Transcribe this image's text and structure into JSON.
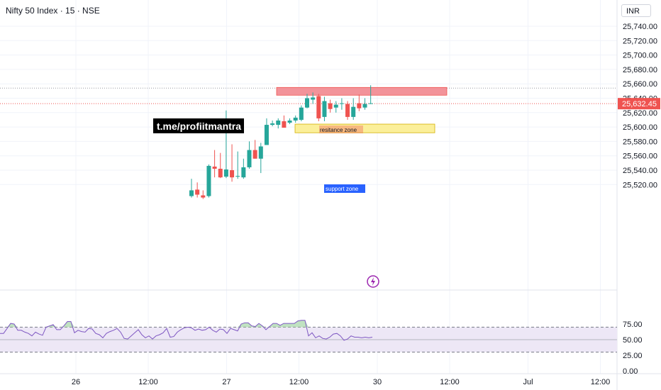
{
  "header": {
    "title": "Nifty 50 Index · 15 · NSE",
    "currency": "INR"
  },
  "annotations": {
    "telegram": "t.me/profiitmantra",
    "resistance_label": "resitance zone",
    "support_label": "support zone",
    "last_price_label": "25,632.45"
  },
  "colors": {
    "up": "#26a69a",
    "down": "#ef5350",
    "resistance": "#f2939a",
    "support": "#fbef9a",
    "support_label_bg": "#2962ff",
    "rsi_line": "#7e57c2",
    "rsi_band": "#ede7f6",
    "rsi_overbought": "#a5d6a7",
    "flash": "#9c27b0"
  },
  "chart_data": [
    {
      "type": "candlestick",
      "title": "Nifty 50 Index · 15 · NSE",
      "ylim": [
        25500,
        25752
      ],
      "y_ticks": [
        "25,520.00",
        "25,540.00",
        "25,560.00",
        "25,580.00",
        "25,600.00",
        "25,620.00",
        "25,640.00",
        "25,660.00",
        "25,680.00",
        "25,700.00",
        "25,720.00",
        "25,740.00"
      ],
      "y_tick_values": [
        25520,
        25540,
        25560,
        25580,
        25600,
        25620,
        25640,
        25660,
        25680,
        25700,
        25720,
        25740
      ],
      "x_ticks": [
        "26",
        "12:00",
        "27",
        "12:00",
        "30",
        "12:00",
        "Jul",
        "12:00"
      ],
      "x_tick_positions": [
        0,
        12,
        25,
        37,
        50,
        62,
        75,
        87
      ],
      "last_price": 25632.45,
      "resistance_zone": {
        "low": 25648,
        "high": 25654,
        "x_start": 32,
        "x_end": 59
      },
      "support_zone": {
        "low": 25592,
        "high": 25604,
        "x_start": 35,
        "x_end": 57
      },
      "candles": [
        {
          "x": 0,
          "o": 25504,
          "h": 25528,
          "l": 25502,
          "c": 25512
        },
        {
          "x": 1,
          "o": 25513,
          "h": 25523,
          "l": 25502,
          "c": 25506
        },
        {
          "x": 2,
          "o": 25505,
          "h": 25512,
          "l": 25500,
          "c": 25502
        },
        {
          "x": 3,
          "o": 25504,
          "h": 25548,
          "l": 25502,
          "c": 25546
        },
        {
          "x": 4,
          "o": 25545,
          "h": 25568,
          "l": 25530,
          "c": 25542
        },
        {
          "x": 5,
          "o": 25542,
          "h": 25564,
          "l": 25529,
          "c": 25530
        },
        {
          "x": 6,
          "o": 25531,
          "h": 25623,
          "l": 25529,
          "c": 25541
        },
        {
          "x": 7,
          "o": 25540,
          "h": 25576,
          "l": 25524,
          "c": 25530
        },
        {
          "x": 8,
          "o": 25532,
          "h": 25566,
          "l": 25528,
          "c": 25532
        },
        {
          "x": 9,
          "o": 25530,
          "h": 25556,
          "l": 25528,
          "c": 25544
        },
        {
          "x": 10,
          "o": 25544,
          "h": 25580,
          "l": 25542,
          "c": 25568
        },
        {
          "x": 11,
          "o": 25568,
          "h": 25582,
          "l": 25556,
          "c": 25556
        },
        {
          "x": 12,
          "o": 25556,
          "h": 25578,
          "l": 25536,
          "c": 25573
        },
        {
          "x": 13,
          "o": 25575,
          "h": 25612,
          "l": 25575,
          "c": 25603
        },
        {
          "x": 14,
          "o": 25603,
          "h": 25609,
          "l": 25601,
          "c": 25605
        },
        {
          "x": 15,
          "o": 25603,
          "h": 25612,
          "l": 25598,
          "c": 25609
        },
        {
          "x": 16,
          "o": 25608,
          "h": 25616,
          "l": 25600,
          "c": 25599
        },
        {
          "x": 17,
          "o": 25606,
          "h": 25612,
          "l": 25604,
          "c": 25609
        },
        {
          "x": 18,
          "o": 25609,
          "h": 25616,
          "l": 25606,
          "c": 25613
        },
        {
          "x": 19,
          "o": 25610,
          "h": 25630,
          "l": 25608,
          "c": 25627
        },
        {
          "x": 20,
          "o": 25627,
          "h": 25646,
          "l": 25626,
          "c": 25640
        },
        {
          "x": 21,
          "o": 25638,
          "h": 25648,
          "l": 25632,
          "c": 25641
        },
        {
          "x": 22,
          "o": 25643,
          "h": 25646,
          "l": 25608,
          "c": 25612
        },
        {
          "x": 23,
          "o": 25614,
          "h": 25642,
          "l": 25608,
          "c": 25636
        },
        {
          "x": 24,
          "o": 25633,
          "h": 25638,
          "l": 25620,
          "c": 25625
        },
        {
          "x": 25,
          "o": 25627,
          "h": 25636,
          "l": 25620,
          "c": 25631
        },
        {
          "x": 26,
          "o": 25632,
          "h": 25640,
          "l": 25624,
          "c": 25633
        },
        {
          "x": 27,
          "o": 25632,
          "h": 25636,
          "l": 25610,
          "c": 25614
        },
        {
          "x": 28,
          "o": 25614,
          "h": 25640,
          "l": 25610,
          "c": 25628
        },
        {
          "x": 29,
          "o": 25633,
          "h": 25645,
          "l": 25622,
          "c": 25626
        },
        {
          "x": 30,
          "o": 25627,
          "h": 25640,
          "l": 25624,
          "c": 25632
        },
        {
          "x": 31,
          "o": 25632,
          "h": 25658,
          "l": 25632,
          "c": 25633
        }
      ]
    },
    {
      "type": "line",
      "name": "RSI",
      "ylim": [
        0,
        100
      ],
      "y_ticks": [
        "0.00",
        "25.00",
        "50.00",
        "75.00"
      ],
      "y_tick_values": [
        0,
        25,
        50,
        75
      ],
      "bands": {
        "lower": 30,
        "upper": 70
      },
      "values": [
        60,
        60,
        68,
        76,
        75,
        65,
        65,
        62,
        60,
        56,
        62,
        59,
        57,
        70,
        72,
        74,
        66,
        66,
        72,
        79,
        79,
        61,
        65,
        63,
        62,
        68,
        67,
        60,
        58,
        53,
        60,
        63,
        65,
        68,
        62,
        52,
        51,
        56,
        61,
        66,
        58,
        53,
        56,
        51,
        56,
        58,
        61,
        68,
        54,
        55,
        62,
        66,
        69,
        70,
        69,
        65,
        67,
        65,
        66,
        70,
        65,
        62,
        67,
        66,
        60,
        68,
        66,
        64,
        75,
        77,
        77,
        72,
        71,
        76,
        72,
        66,
        71,
        76,
        76,
        73,
        76,
        76,
        76,
        76,
        80,
        81,
        81,
        56,
        61,
        53,
        56,
        52,
        51,
        54,
        59,
        60,
        56,
        49,
        51,
        56,
        54,
        54,
        53,
        54,
        53,
        54
      ]
    }
  ]
}
